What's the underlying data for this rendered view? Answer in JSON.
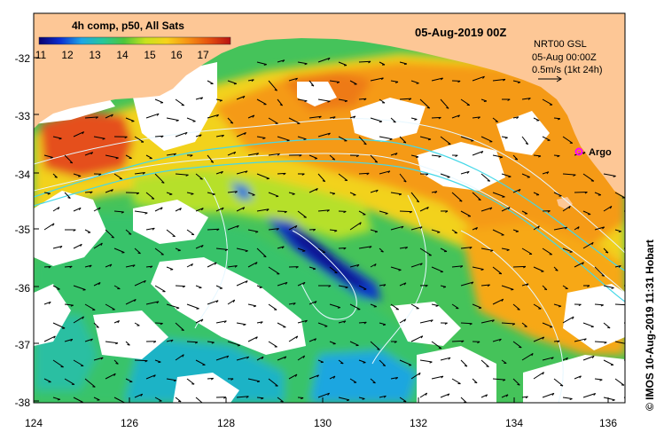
{
  "title": {
    "product": "4h comp, p50, All Sats",
    "date": "05-Aug-2019 00Z"
  },
  "colorbar": {
    "ticks": [
      "11",
      "12",
      "13",
      "14",
      "15",
      "16",
      "17"
    ],
    "colors": [
      "#08006e",
      "#0b2fd2",
      "#1da6e6",
      "#26c79a",
      "#4fc63a",
      "#c8e21d",
      "#f7d21a",
      "#f69214",
      "#e5500f",
      "#b81111"
    ]
  },
  "legend": {
    "model": "NRT00 GSL",
    "time": "05-Aug 00:00Z",
    "scale": "0.5m/s (1kt 24h)"
  },
  "marker": {
    "label": "Argo",
    "color": "#ff00ff"
  },
  "axes": {
    "lat_ticks": [
      "-32",
      "-33",
      "-34",
      "-35",
      "-36",
      "-37",
      "-38"
    ],
    "lon_ticks": [
      "124",
      "126",
      "128",
      "130",
      "132",
      "134",
      "136"
    ]
  },
  "credit": "© IMOS 10-Aug-2019 11:31 Hobart",
  "colors": {
    "land": "#fdc796",
    "cloud": "#ffffff",
    "contour": "#e6f7ff",
    "shelf": "#45d8e8"
  }
}
